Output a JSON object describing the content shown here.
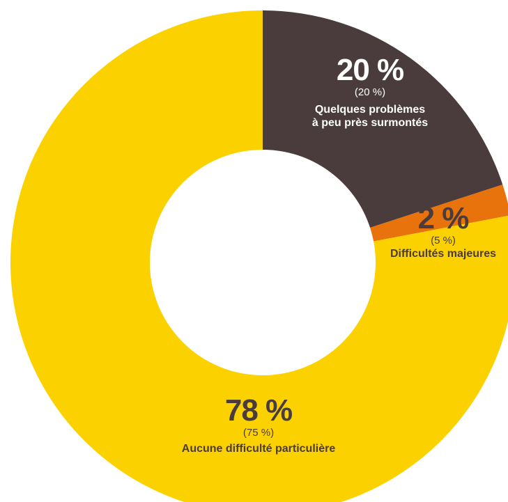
{
  "chart_data": {
    "type": "pie",
    "donut": true,
    "start_angle_deg": 0,
    "direction": "clockwise",
    "slices": [
      {
        "label_lines": [
          "Quelques problèmes",
          "à peu près surmontés"
        ],
        "value": 20,
        "value_text": "20 %",
        "previous_text": "(20 %)",
        "color": "#4a3c3c",
        "text_color": "#ffffff"
      },
      {
        "label_lines": [
          "Difficultés majeures"
        ],
        "value": 2,
        "value_text": "2 %",
        "previous_text": "(5 %)",
        "color": "#e8720c",
        "text_color": "#4a3c3c"
      },
      {
        "label_lines": [
          "Aucune difficulté particulière"
        ],
        "value": 78,
        "value_text": "78 %",
        "previous_text": "(75 %)",
        "color": "#fcd100",
        "text_color": "#4a3c3c"
      }
    ]
  }
}
